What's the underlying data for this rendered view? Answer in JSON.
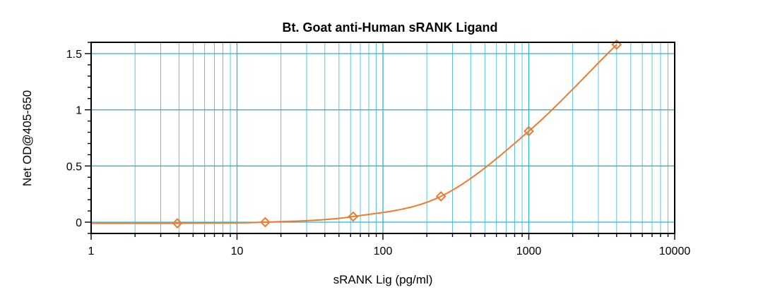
{
  "chart_data": {
    "type": "scatter",
    "title": "Bt. Goat anti-Human sRANK Ligand",
    "xlabel": "sRANK Lig (pg/ml)",
    "ylabel": "Net OD@405-650",
    "x_scale": "log",
    "xlim": [
      1,
      10000
    ],
    "ylim": [
      -0.1,
      1.6
    ],
    "x_ticks": [
      "1",
      "10",
      "100",
      "1000",
      "10000"
    ],
    "y_ticks": [
      "0",
      "0.5",
      "1",
      "1.5"
    ],
    "grid": true,
    "series": [
      {
        "color": "#f07a2c",
        "marker": "diamond",
        "fit_curve": true,
        "points": [
          {
            "x": 3.9,
            "y": -0.01
          },
          {
            "x": 15.6,
            "y": 0.0
          },
          {
            "x": 62.5,
            "y": 0.05
          },
          {
            "x": 250,
            "y": 0.23
          },
          {
            "x": 1000,
            "y": 0.81
          },
          {
            "x": 4000,
            "y": 1.58
          }
        ]
      }
    ]
  }
}
